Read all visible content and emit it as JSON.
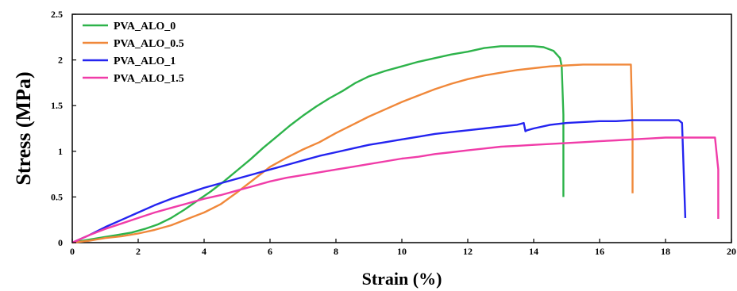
{
  "chart_data": {
    "type": "line",
    "title": "",
    "xlabel": "Strain (%)",
    "ylabel": "Stress (MPa)",
    "xlim": [
      0,
      20
    ],
    "ylim": [
      0,
      2.5
    ],
    "x_ticks": [
      "0",
      "2",
      "4",
      "6",
      "8",
      "10",
      "12",
      "14",
      "16",
      "18",
      "20"
    ],
    "y_ticks": [
      "0",
      "0.5",
      "1",
      "1.5",
      "2",
      "2.5"
    ],
    "grid": false,
    "legend_position": "top-left",
    "series": [
      {
        "name": "PVA_ALO_0",
        "color": "#2db34a",
        "x": [
          0,
          0.3,
          0.8,
          1.3,
          1.8,
          2.2,
          2.6,
          3.0,
          3.4,
          3.8,
          4.2,
          4.6,
          5.0,
          5.4,
          5.8,
          6.2,
          6.6,
          7.0,
          7.4,
          7.8,
          8.2,
          8.6,
          9.0,
          9.5,
          10.0,
          10.5,
          11.0,
          11.5,
          12.0,
          12.5,
          13.0,
          13.5,
          14.0,
          14.3,
          14.6,
          14.8,
          14.85,
          14.9,
          14.9
        ],
        "y": [
          0,
          0.02,
          0.05,
          0.08,
          0.11,
          0.15,
          0.2,
          0.27,
          0.36,
          0.46,
          0.56,
          0.67,
          0.79,
          0.91,
          1.04,
          1.16,
          1.28,
          1.39,
          1.49,
          1.58,
          1.66,
          1.75,
          1.82,
          1.88,
          1.93,
          1.98,
          2.02,
          2.06,
          2.09,
          2.13,
          2.15,
          2.15,
          2.15,
          2.14,
          2.1,
          2.02,
          1.93,
          1.4,
          0.5
        ]
      },
      {
        "name": "PVA_ALO_0.5",
        "color": "#f0883a",
        "x": [
          0,
          0.5,
          1.0,
          1.5,
          2.0,
          2.5,
          3.0,
          3.5,
          4.0,
          4.5,
          5.0,
          5.5,
          6.0,
          6.5,
          7.0,
          7.5,
          8.0,
          8.5,
          9.0,
          9.5,
          10.0,
          10.5,
          11.0,
          11.5,
          12.0,
          12.5,
          13.0,
          13.5,
          14.0,
          14.5,
          15.0,
          15.5,
          16.0,
          16.5,
          16.95,
          17.0,
          17.0
        ],
        "y": [
          0,
          0.02,
          0.05,
          0.07,
          0.1,
          0.14,
          0.19,
          0.26,
          0.33,
          0.42,
          0.55,
          0.69,
          0.83,
          0.93,
          1.02,
          1.1,
          1.2,
          1.29,
          1.38,
          1.46,
          1.54,
          1.61,
          1.68,
          1.74,
          1.79,
          1.83,
          1.86,
          1.89,
          1.91,
          1.93,
          1.94,
          1.95,
          1.95,
          1.95,
          1.95,
          1.2,
          0.54
        ]
      },
      {
        "name": "PVA_ALO_1",
        "color": "#2424f0",
        "x": [
          0,
          0.5,
          1.0,
          1.5,
          2.0,
          2.5,
          3.0,
          3.5,
          4.0,
          4.5,
          5.0,
          5.5,
          6.0,
          6.5,
          7.0,
          7.5,
          8.0,
          8.5,
          9.0,
          9.5,
          10.0,
          10.5,
          11.0,
          11.5,
          12.0,
          12.5,
          13.0,
          13.5,
          13.7,
          13.75,
          13.8,
          14.0,
          14.5,
          15.0,
          15.5,
          16.0,
          16.5,
          17.0,
          17.5,
          18.0,
          18.4,
          18.5,
          18.55,
          18.6
        ],
        "y": [
          0,
          0.08,
          0.17,
          0.25,
          0.33,
          0.41,
          0.48,
          0.54,
          0.6,
          0.65,
          0.7,
          0.75,
          0.8,
          0.85,
          0.9,
          0.95,
          0.99,
          1.03,
          1.07,
          1.1,
          1.13,
          1.16,
          1.19,
          1.21,
          1.23,
          1.25,
          1.27,
          1.29,
          1.31,
          1.22,
          1.23,
          1.25,
          1.29,
          1.31,
          1.32,
          1.33,
          1.33,
          1.34,
          1.34,
          1.34,
          1.34,
          1.31,
          0.8,
          0.27
        ]
      },
      {
        "name": "PVA_ALO_1.5",
        "color": "#f03ca8",
        "x": [
          0,
          0.5,
          1.0,
          1.5,
          2.0,
          2.5,
          3.0,
          3.5,
          4.0,
          4.5,
          5.0,
          5.5,
          6.0,
          6.5,
          7.0,
          7.5,
          8.0,
          8.5,
          9.0,
          9.5,
          10.0,
          10.5,
          11.0,
          11.5,
          12.0,
          12.5,
          13.0,
          13.5,
          14.0,
          14.5,
          15.0,
          15.5,
          16.0,
          16.5,
          17.0,
          17.5,
          18.0,
          18.5,
          19.0,
          19.5,
          19.6,
          19.6
        ],
        "y": [
          0,
          0.08,
          0.15,
          0.21,
          0.27,
          0.33,
          0.38,
          0.43,
          0.48,
          0.52,
          0.57,
          0.62,
          0.67,
          0.71,
          0.74,
          0.77,
          0.8,
          0.83,
          0.86,
          0.89,
          0.92,
          0.94,
          0.97,
          0.99,
          1.01,
          1.03,
          1.05,
          1.06,
          1.07,
          1.08,
          1.09,
          1.1,
          1.11,
          1.12,
          1.13,
          1.14,
          1.15,
          1.15,
          1.15,
          1.15,
          0.8,
          0.26
        ]
      }
    ]
  }
}
